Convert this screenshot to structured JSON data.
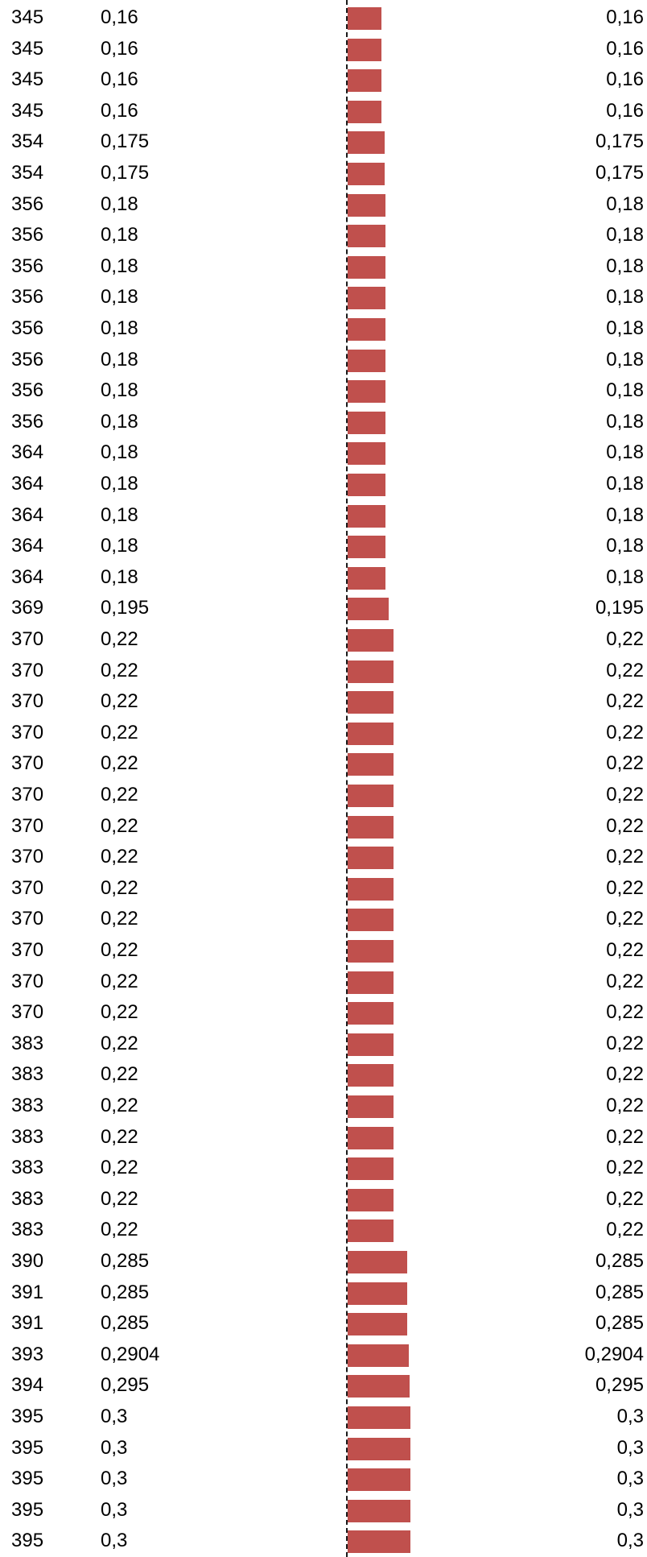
{
  "colors": {
    "bar": "#C0504D"
  },
  "chart_data": {
    "type": "bar",
    "orientation": "horizontal",
    "axis": {
      "min": 0,
      "max": 1
    },
    "rows": [
      {
        "rank": "345",
        "label": "0,16",
        "value": 0.16
      },
      {
        "rank": "345",
        "label": "0,16",
        "value": 0.16
      },
      {
        "rank": "345",
        "label": "0,16",
        "value": 0.16
      },
      {
        "rank": "345",
        "label": "0,16",
        "value": 0.16
      },
      {
        "rank": "354",
        "label": "0,175",
        "value": 0.175
      },
      {
        "rank": "354",
        "label": "0,175",
        "value": 0.175
      },
      {
        "rank": "356",
        "label": "0,18",
        "value": 0.18
      },
      {
        "rank": "356",
        "label": "0,18",
        "value": 0.18
      },
      {
        "rank": "356",
        "label": "0,18",
        "value": 0.18
      },
      {
        "rank": "356",
        "label": "0,18",
        "value": 0.18
      },
      {
        "rank": "356",
        "label": "0,18",
        "value": 0.18
      },
      {
        "rank": "356",
        "label": "0,18",
        "value": 0.18
      },
      {
        "rank": "356",
        "label": "0,18",
        "value": 0.18
      },
      {
        "rank": "356",
        "label": "0,18",
        "value": 0.18
      },
      {
        "rank": "364",
        "label": "0,18",
        "value": 0.18
      },
      {
        "rank": "364",
        "label": "0,18",
        "value": 0.18
      },
      {
        "rank": "364",
        "label": "0,18",
        "value": 0.18
      },
      {
        "rank": "364",
        "label": "0,18",
        "value": 0.18
      },
      {
        "rank": "364",
        "label": "0,18",
        "value": 0.18
      },
      {
        "rank": "369",
        "label": "0,195",
        "value": 0.195
      },
      {
        "rank": "370",
        "label": "0,22",
        "value": 0.22
      },
      {
        "rank": "370",
        "label": "0,22",
        "value": 0.22
      },
      {
        "rank": "370",
        "label": "0,22",
        "value": 0.22
      },
      {
        "rank": "370",
        "label": "0,22",
        "value": 0.22
      },
      {
        "rank": "370",
        "label": "0,22",
        "value": 0.22
      },
      {
        "rank": "370",
        "label": "0,22",
        "value": 0.22
      },
      {
        "rank": "370",
        "label": "0,22",
        "value": 0.22
      },
      {
        "rank": "370",
        "label": "0,22",
        "value": 0.22
      },
      {
        "rank": "370",
        "label": "0,22",
        "value": 0.22
      },
      {
        "rank": "370",
        "label": "0,22",
        "value": 0.22
      },
      {
        "rank": "370",
        "label": "0,22",
        "value": 0.22
      },
      {
        "rank": "370",
        "label": "0,22",
        "value": 0.22
      },
      {
        "rank": "370",
        "label": "0,22",
        "value": 0.22
      },
      {
        "rank": "383",
        "label": "0,22",
        "value": 0.22
      },
      {
        "rank": "383",
        "label": "0,22",
        "value": 0.22
      },
      {
        "rank": "383",
        "label": "0,22",
        "value": 0.22
      },
      {
        "rank": "383",
        "label": "0,22",
        "value": 0.22
      },
      {
        "rank": "383",
        "label": "0,22",
        "value": 0.22
      },
      {
        "rank": "383",
        "label": "0,22",
        "value": 0.22
      },
      {
        "rank": "383",
        "label": "0,22",
        "value": 0.22
      },
      {
        "rank": "390",
        "label": "0,285",
        "value": 0.285
      },
      {
        "rank": "391",
        "label": "0,285",
        "value": 0.285
      },
      {
        "rank": "391",
        "label": "0,285",
        "value": 0.285
      },
      {
        "rank": "393",
        "label": "0,2904",
        "value": 0.2904
      },
      {
        "rank": "394",
        "label": "0,295",
        "value": 0.295
      },
      {
        "rank": "395",
        "label": "0,3",
        "value": 0.3
      },
      {
        "rank": "395",
        "label": "0,3",
        "value": 0.3
      },
      {
        "rank": "395",
        "label": "0,3",
        "value": 0.3
      },
      {
        "rank": "395",
        "label": "0,3",
        "value": 0.3
      },
      {
        "rank": "395",
        "label": "0,3",
        "value": 0.3
      }
    ]
  }
}
